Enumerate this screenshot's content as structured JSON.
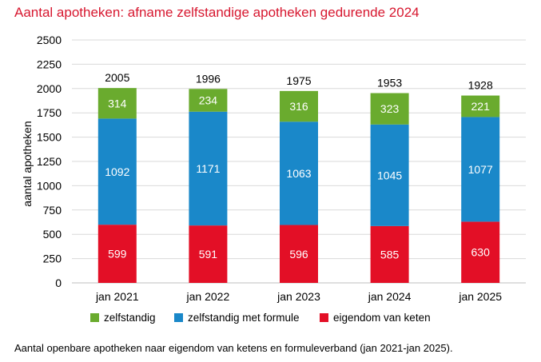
{
  "title": "Aantal apotheken: afname zelfstandige apotheken gedurende 2024",
  "caption": "Aantal openbare apotheken naar eigendom van ketens en formuleverband (jan 2021-jan 2025).",
  "colors": {
    "title": "#d7172f",
    "zelfstandig": "#6aab2e",
    "formule": "#1a88c9",
    "keten": "#e30f26",
    "grid": "#d9d9d9"
  },
  "chart_data": {
    "type": "bar",
    "stacked": true,
    "ylabel": "aantal apotheken",
    "xlabel": "",
    "ylim": [
      0,
      2500
    ],
    "yticks": [
      0,
      250,
      500,
      750,
      1000,
      1250,
      1500,
      1750,
      2000,
      2250,
      2500
    ],
    "grid": true,
    "legend_position": "bottom",
    "categories": [
      "jan 2021",
      "jan 2022",
      "jan 2023",
      "jan 2024",
      "jan 2025"
    ],
    "totals": [
      2005,
      1996,
      1975,
      1953,
      1928
    ],
    "series": [
      {
        "name": "eigendom van keten",
        "color": "#e30f26",
        "values": [
          599,
          591,
          596,
          585,
          630
        ]
      },
      {
        "name": "zelfstandig met formule",
        "color": "#1a88c9",
        "values": [
          1092,
          1171,
          1063,
          1045,
          1077
        ]
      },
      {
        "name": "zelfstandig",
        "color": "#6aab2e",
        "values": [
          314,
          234,
          316,
          323,
          221
        ]
      }
    ],
    "legend_order": [
      "zelfstandig",
      "zelfstandig met formule",
      "eigendom van keten"
    ]
  }
}
